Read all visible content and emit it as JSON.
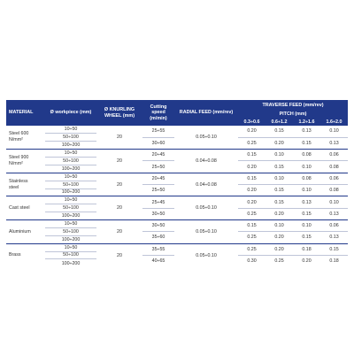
{
  "headers": {
    "material": "MATERIAL",
    "workpiece": "Ø workpiece (mm)",
    "knurling_wheel": "Ø KNURLING WHEEL (mm)",
    "cutting_speed": "Cutting speed (m/min)",
    "radial_feed": "RADIAL FEED (mm/rev)",
    "traverse_feed": "TRAVERSE FEED (mm/rev)",
    "pitch": "PITCH (mm)",
    "pitch_ranges": [
      "0.3÷0.6",
      "0.6÷1.2",
      "1.2÷1.6",
      "1.6÷2.0"
    ]
  },
  "groups": [
    {
      "material": [
        "Steel 600",
        "N/mm²"
      ],
      "workpiece": [
        "10÷50",
        "50÷100",
        "100÷200"
      ],
      "knurling_wheel": "20",
      "radial_feed": "0.05÷0.10",
      "rows": [
        {
          "speed": "25÷55",
          "feeds": [
            "0.20",
            "0.15",
            "0.13",
            "0.10"
          ]
        },
        {
          "speed": "30÷60",
          "feeds": [
            "0.25",
            "0.20",
            "0.15",
            "0.13"
          ]
        }
      ]
    },
    {
      "material": [
        "Steel 900",
        "N/mm²"
      ],
      "workpiece": [
        "10÷50",
        "50÷100",
        "100÷200"
      ],
      "knurling_wheel": "20",
      "radial_feed": "0.04÷0.08",
      "rows": [
        {
          "speed": "20÷45",
          "feeds": [
            "0.15",
            "0.10",
            "0.08",
            "0.06"
          ]
        },
        {
          "speed": "25÷50",
          "feeds": [
            "0.20",
            "0.15",
            "0.10",
            "0.08"
          ]
        }
      ]
    },
    {
      "material": [
        "Stainless",
        "steel"
      ],
      "workpiece": [
        "10÷50",
        "50÷100",
        "100÷200"
      ],
      "knurling_wheel": "20",
      "radial_feed": "0.04÷0.08",
      "rows": [
        {
          "speed": "20÷45",
          "feeds": [
            "0.15",
            "0.10",
            "0.08",
            "0.06"
          ]
        },
        {
          "speed": "25÷50",
          "feeds": [
            "0.20",
            "0.15",
            "0.10",
            "0.08"
          ]
        }
      ]
    },
    {
      "material": [
        "Cast steel"
      ],
      "workpiece": [
        "10÷50",
        "50÷100",
        "100÷200"
      ],
      "knurling_wheel": "20",
      "radial_feed": "0.05÷0.10",
      "rows": [
        {
          "speed": "25÷45",
          "feeds": [
            "0.20",
            "0.15",
            "0.13",
            "0.10"
          ]
        },
        {
          "speed": "30÷50",
          "feeds": [
            "0.25",
            "0.20",
            "0.15",
            "0.13"
          ]
        }
      ]
    },
    {
      "material": [
        "Aluminium"
      ],
      "workpiece": [
        "10÷50",
        "50÷100",
        "100÷200"
      ],
      "knurling_wheel": "20",
      "radial_feed": "0.05÷0.10",
      "rows": [
        {
          "speed": "30÷50",
          "feeds": [
            "0.15",
            "0.10",
            "0.10",
            "0.06"
          ]
        },
        {
          "speed": "35÷60",
          "feeds": [
            "0.25",
            "0.20",
            "0.15",
            "0.13"
          ]
        }
      ]
    },
    {
      "material": [
        "Brass"
      ],
      "workpiece": [
        "10÷50",
        "50÷100",
        "100÷200"
      ],
      "knurling_wheel": "20",
      "radial_feed": "0.05÷0.10",
      "rows": [
        {
          "speed": "35÷55",
          "feeds": [
            "0.25",
            "0.20",
            "0.18",
            "0.15"
          ]
        },
        {
          "speed": "40÷65",
          "feeds": [
            "0.30",
            "0.25",
            "0.20",
            "0.18"
          ]
        }
      ]
    }
  ]
}
